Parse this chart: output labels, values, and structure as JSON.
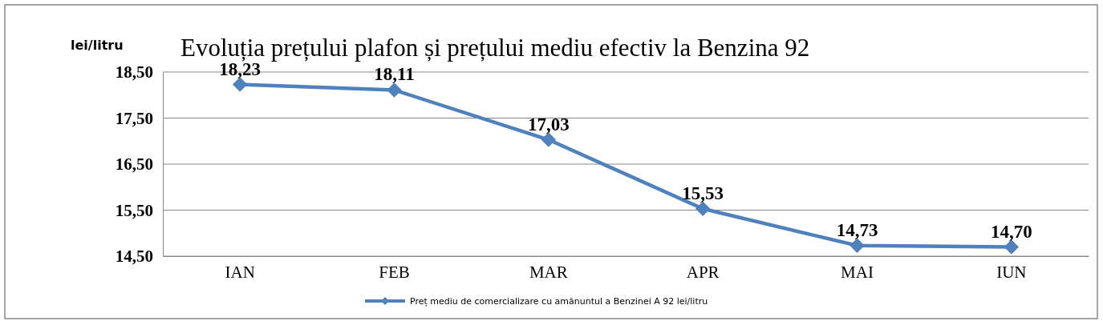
{
  "chart_data": {
    "type": "line",
    "title": "Evoluția prețului plafon și prețului mediu efectiv la Benzina 92",
    "ylabel": "lei/litru",
    "categories": [
      "IAN",
      "FEB",
      "MAR",
      "APR",
      "MAI",
      "IUN"
    ],
    "series": [
      {
        "name": "Preț mediu de comercializare cu amănuntul a Benzinei A 92 lei/litru",
        "color": "#4f81bd",
        "values": [
          18.23,
          18.11,
          17.03,
          15.53,
          14.73,
          14.7
        ],
        "value_labels": [
          "18,23",
          "18,11",
          "17,03",
          "15,53",
          "14,73",
          "14,70"
        ]
      }
    ],
    "ylim": [
      14.5,
      18.5
    ],
    "yticks": [
      {
        "value": 14.5,
        "label": "14,50"
      },
      {
        "value": 15.5,
        "label": "15,50"
      },
      {
        "value": 16.5,
        "label": "16,50"
      },
      {
        "value": 17.5,
        "label": "17,50"
      },
      {
        "value": 18.5,
        "label": "18,50"
      }
    ],
    "grid": "y",
    "legend": "bottom",
    "marker": "diamond",
    "line_style": "solid"
  }
}
